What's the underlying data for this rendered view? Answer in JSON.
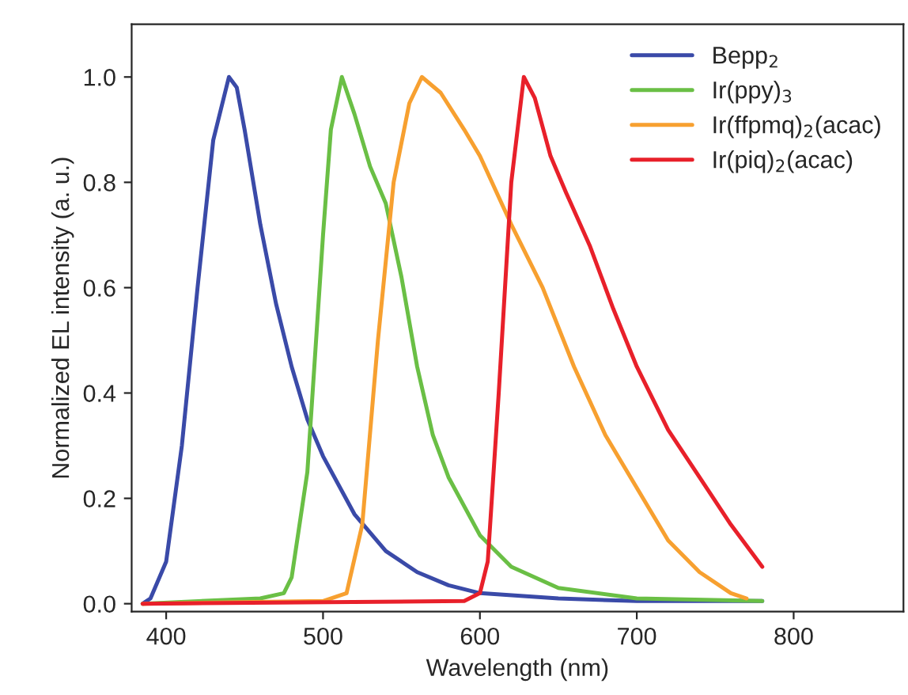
{
  "chart_data": {
    "type": "line",
    "xlabel": "Wavelength (nm)",
    "ylabel": "Normalized EL intensity (a. u.)",
    "xlim": [
      378,
      870
    ],
    "ylim": [
      -0.015,
      1.1
    ],
    "xticks": [
      400,
      500,
      600,
      700,
      800
    ],
    "yticks": [
      {
        "value": 0,
        "label": "0.0"
      },
      0.2,
      0.4,
      0.6,
      0.8,
      {
        "value": 1,
        "label": "1.0"
      }
    ],
    "grid": false,
    "legend": "top right",
    "marker": "none",
    "line_style": "solid",
    "series": [
      {
        "name": "Bepp$_{2}$",
        "color": "#3a4aa8",
        "x": [
          385,
          390,
          400,
          410,
          420,
          430,
          440,
          445,
          450,
          460,
          470,
          480,
          490,
          500,
          520,
          540,
          560,
          580,
          600,
          650,
          700,
          780
        ],
        "values": [
          0.0,
          0.01,
          0.08,
          0.3,
          0.6,
          0.88,
          1.0,
          0.98,
          0.9,
          0.72,
          0.57,
          0.45,
          0.35,
          0.28,
          0.17,
          0.1,
          0.06,
          0.035,
          0.02,
          0.01,
          0.005,
          0.005
        ]
      },
      {
        "name": "Ir(ppy)$_{3}$",
        "color": "#6abf45",
        "x": [
          385,
          460,
          475,
          480,
          490,
          500,
          505,
          512,
          520,
          530,
          540,
          550,
          560,
          570,
          580,
          600,
          620,
          650,
          700,
          780
        ],
        "values": [
          0.0,
          0.01,
          0.02,
          0.05,
          0.25,
          0.7,
          0.9,
          1.0,
          0.93,
          0.83,
          0.76,
          0.62,
          0.45,
          0.32,
          0.24,
          0.13,
          0.07,
          0.03,
          0.01,
          0.005
        ]
      },
      {
        "name": "Ir(ffpmq)$_{2}$(acac)",
        "color": "#f7a030",
        "x": [
          385,
          500,
          515,
          525,
          535,
          545,
          555,
          563,
          575,
          590,
          600,
          620,
          640,
          660,
          680,
          700,
          720,
          740,
          760,
          770
        ],
        "values": [
          0.0,
          0.005,
          0.02,
          0.15,
          0.5,
          0.8,
          0.95,
          1.0,
          0.97,
          0.9,
          0.85,
          0.72,
          0.6,
          0.45,
          0.32,
          0.22,
          0.12,
          0.06,
          0.02,
          0.01
        ]
      },
      {
        "name": "Ir(piq)$_{2}$(acac)",
        "color": "#e8202a",
        "x": [
          385,
          590,
          600,
          605,
          612,
          620,
          628,
          635,
          645,
          655,
          670,
          685,
          700,
          720,
          740,
          760,
          780
        ],
        "values": [
          0.0,
          0.005,
          0.02,
          0.08,
          0.4,
          0.8,
          1.0,
          0.96,
          0.85,
          0.78,
          0.68,
          0.56,
          0.45,
          0.33,
          0.24,
          0.15,
          0.07
        ]
      }
    ]
  }
}
